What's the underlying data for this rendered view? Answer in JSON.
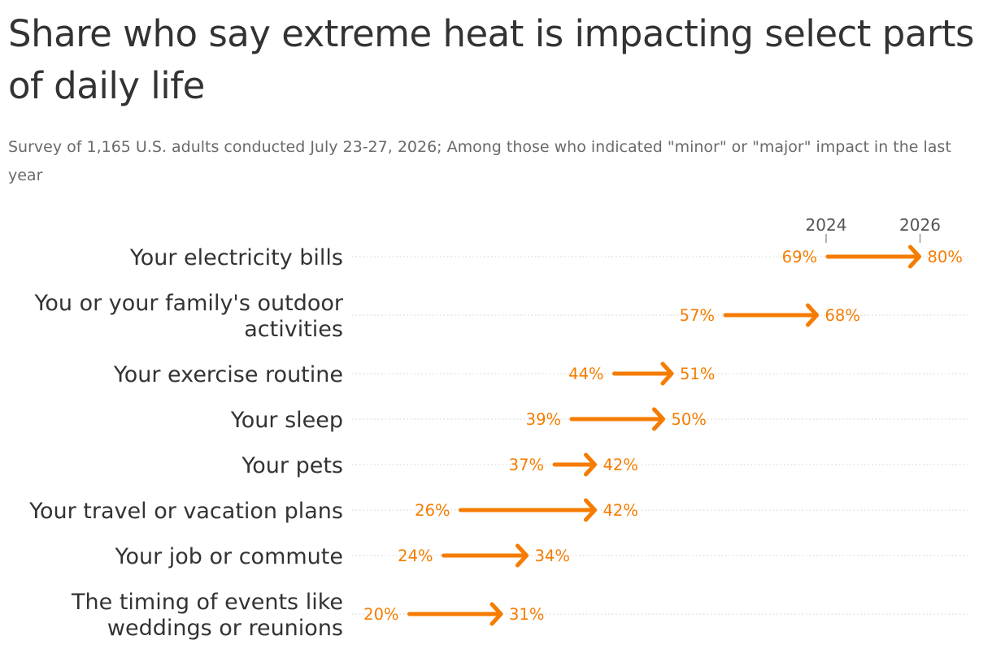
{
  "title": "Share who say extreme heat is impacting select parts of daily life",
  "subtitle": "Survey of 1,165 U.S. adults conducted July 23-27, 2026; Among those who indicated \"minor\" or \"major\" impact in the last year",
  "chart_data": {
    "type": "arrow-dot",
    "start_label": "2024",
    "end_label": "2026",
    "categories": [
      [
        "Your electricity bills"
      ],
      [
        "You or your family's outdoor",
        "activities"
      ],
      [
        "Your exercise routine"
      ],
      [
        "Your sleep"
      ],
      [
        "Your pets"
      ],
      [
        "Your travel or vacation plans"
      ],
      [
        "Your job or commute"
      ],
      [
        "The timing of events like",
        "weddings or reunions"
      ]
    ],
    "series": [
      {
        "name": "2024",
        "values": [
          69,
          57,
          44,
          39,
          37,
          26,
          24,
          20
        ]
      },
      {
        "name": "2026",
        "values": [
          80,
          68,
          51,
          50,
          42,
          42,
          34,
          31
        ]
      }
    ],
    "value_format": "{v}%",
    "colors": {
      "arrow": "#f57c00",
      "gridline": "#d9d9d9",
      "year_tick": "#999999"
    }
  }
}
